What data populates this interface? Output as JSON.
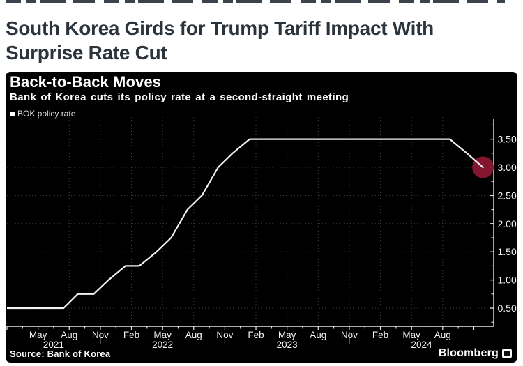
{
  "headline": {
    "line1": "South Korea Girds for Trump Tariff Impact With",
    "line2": "Surprise Rate Cut"
  },
  "chart_data": {
    "type": "line",
    "title": "Back-to-Back Moves",
    "subtitle": "Bank of Korea cuts its policy rate at a second-straight meeting",
    "legend": [
      {
        "label": "BOK policy rate",
        "color": "#ffffff"
      }
    ],
    "source": "Source: Bank of Korea",
    "brand": "Bloomberg",
    "grid": true,
    "legend_position": "top-left",
    "colors": {
      "panel_background": "#000000",
      "line": "#f2f2f2",
      "grid": "#404040",
      "axis": "#e8e8e8",
      "tick_label": "#f2f2f2",
      "highlight": "#8a1730"
    },
    "y_axis": {
      "side": "right",
      "min": 0.5,
      "max": 3.5,
      "step": 0.5,
      "tick_labels": [
        "0.50",
        "1.00",
        "1.50",
        "2.00",
        "2.50",
        "3.00",
        "3.50"
      ]
    },
    "x_axis": {
      "start": "2021-02-01",
      "end": "2024-12-29",
      "major_ticks": [
        {
          "t": "2021-05-01",
          "label": "May"
        },
        {
          "t": "2021-08-01",
          "label": "Aug"
        },
        {
          "t": "2021-11-01",
          "label": "Nov"
        },
        {
          "t": "2022-02-01",
          "label": "Feb"
        },
        {
          "t": "2022-05-01",
          "label": "May"
        },
        {
          "t": "2022-08-01",
          "label": "Aug"
        },
        {
          "t": "2022-11-01",
          "label": "Nov"
        },
        {
          "t": "2023-02-01",
          "label": "Feb"
        },
        {
          "t": "2023-05-01",
          "label": "May"
        },
        {
          "t": "2023-08-01",
          "label": "Aug"
        },
        {
          "t": "2023-11-01",
          "label": "Nov"
        },
        {
          "t": "2024-02-01",
          "label": "Feb"
        },
        {
          "t": "2024-05-01",
          "label": "May"
        },
        {
          "t": "2024-08-01",
          "label": "Aug"
        },
        {
          "t": "2024-11-01",
          "label": ""
        }
      ],
      "year_dividers": [
        "2021-11-01",
        "2022-11-01",
        "2023-11-01"
      ],
      "year_labels": [
        "2021",
        "2022",
        "2023",
        "2024"
      ]
    },
    "series": [
      {
        "name": "BOK policy rate",
        "color": "#f2f2f2",
        "points": [
          [
            "2021-01-15",
            0.5
          ],
          [
            "2021-02-25",
            0.5
          ],
          [
            "2021-04-15",
            0.5
          ],
          [
            "2021-05-27",
            0.5
          ],
          [
            "2021-07-15",
            0.5
          ],
          [
            "2021-08-26",
            0.75
          ],
          [
            "2021-10-12",
            0.75
          ],
          [
            "2021-11-25",
            1.0
          ],
          [
            "2022-01-14",
            1.25
          ],
          [
            "2022-02-24",
            1.25
          ],
          [
            "2022-04-14",
            1.5
          ],
          [
            "2022-05-26",
            1.75
          ],
          [
            "2022-07-13",
            2.25
          ],
          [
            "2022-08-25",
            2.5
          ],
          [
            "2022-10-12",
            3.0
          ],
          [
            "2022-11-24",
            3.25
          ],
          [
            "2023-01-13",
            3.5
          ],
          [
            "2023-02-23",
            3.5
          ],
          [
            "2023-04-11",
            3.5
          ],
          [
            "2023-05-25",
            3.5
          ],
          [
            "2023-07-13",
            3.5
          ],
          [
            "2023-08-24",
            3.5
          ],
          [
            "2023-10-19",
            3.5
          ],
          [
            "2023-11-30",
            3.5
          ],
          [
            "2024-01-11",
            3.5
          ],
          [
            "2024-02-22",
            3.5
          ],
          [
            "2024-04-12",
            3.5
          ],
          [
            "2024-05-23",
            3.5
          ],
          [
            "2024-07-11",
            3.5
          ],
          [
            "2024-08-22",
            3.5
          ],
          [
            "2024-10-11",
            3.25
          ],
          [
            "2024-11-28",
            3.0
          ]
        ]
      }
    ],
    "highlight": {
      "point": [
        "2024-11-28",
        3.0
      ],
      "color": "#8a1730",
      "radius": 15.5
    }
  }
}
